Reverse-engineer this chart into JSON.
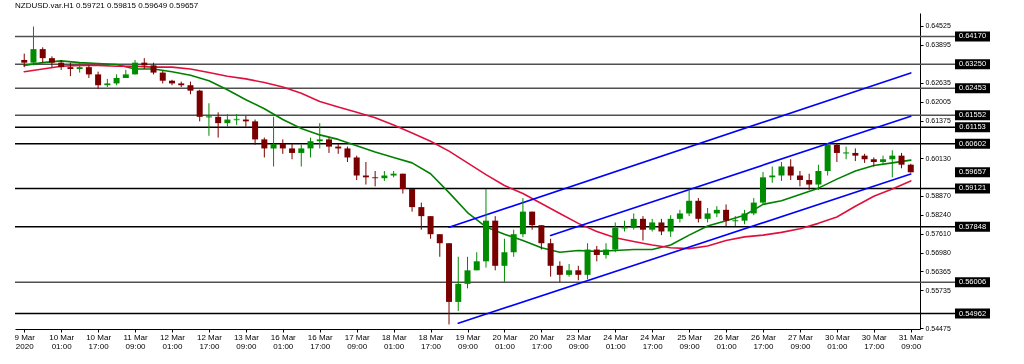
{
  "chart_data": {
    "type": "candlestick",
    "title": "NZDUSD.var.H1  0.59721 0.59815 0.59649 0.59657",
    "categories": [
      "9 Mar 2020",
      null,
      null,
      null,
      "10 Mar 01:00",
      null,
      null,
      null,
      "10 Mar 17:00",
      null,
      null,
      null,
      "11 Mar 09:00",
      null,
      null,
      null,
      "12 Mar 01:00",
      null,
      null,
      null,
      "12 Mar 17:00",
      null,
      null,
      null,
      "13 Mar 09:00",
      null,
      null,
      null,
      "16 Mar 01:00",
      null,
      null,
      null,
      "16 Mar 17:00",
      null,
      null,
      null,
      "17 Mar 09:00",
      null,
      null,
      null,
      "18 Mar 01:00",
      null,
      null,
      null,
      "18 Mar 17:00",
      null,
      null,
      null,
      "19 Mar 09:00",
      null,
      null,
      null,
      "20 Mar 01:00",
      null,
      null,
      null,
      "20 Mar 17:00",
      null,
      null,
      null,
      "23 Mar 09:00",
      null,
      null,
      null,
      "24 Mar 01:00",
      null,
      null,
      null,
      "24 Mar 17:00",
      null,
      null,
      null,
      "25 Mar 09:00",
      null,
      null,
      null,
      "26 Mar 01:00",
      null,
      null,
      null,
      "26 Mar 17:00",
      null,
      null,
      null,
      "27 Mar 09:00",
      null,
      null,
      null,
      "30 Mar 01:00",
      null,
      null,
      null,
      "30 Mar 17:00",
      null,
      null,
      null,
      "31 Mar 09:00"
    ],
    "ohlc": [
      [
        0.6339,
        0.636,
        0.6315,
        0.633
      ],
      [
        0.633,
        0.645,
        0.6321,
        0.6375
      ],
      [
        0.6375,
        0.6381,
        0.633,
        0.6345
      ],
      [
        0.6345,
        0.6351,
        0.6315,
        0.633
      ],
      [
        0.633,
        0.6339,
        0.6306,
        0.6315
      ],
      [
        0.6315,
        0.633,
        0.6285,
        0.6309
      ],
      [
        0.6309,
        0.633,
        0.6297,
        0.6315
      ],
      [
        0.6315,
        0.6321,
        0.6279,
        0.6291
      ],
      [
        0.6291,
        0.63,
        0.6243,
        0.6255
      ],
      [
        0.6255,
        0.6276,
        0.6249,
        0.6261
      ],
      [
        0.6261,
        0.6291,
        0.6255,
        0.6279
      ],
      [
        0.6279,
        0.6306,
        0.6279,
        0.6291
      ],
      [
        0.6291,
        0.6339,
        0.6291,
        0.633
      ],
      [
        0.633,
        0.6345,
        0.6309,
        0.6321
      ],
      [
        0.6321,
        0.633,
        0.6291,
        0.6297
      ],
      [
        0.6297,
        0.6303,
        0.6261,
        0.627
      ],
      [
        0.627,
        0.6273,
        0.6255,
        0.6261
      ],
      [
        0.6261,
        0.6267,
        0.6249,
        0.6255
      ],
      [
        0.6255,
        0.6267,
        0.6225,
        0.6237
      ],
      [
        0.6237,
        0.624,
        0.6135,
        0.615
      ],
      [
        0.615,
        0.6195,
        0.6087,
        0.615
      ],
      [
        0.615,
        0.6165,
        0.6081,
        0.6129
      ],
      [
        0.6129,
        0.6159,
        0.6117,
        0.6141
      ],
      [
        0.6141,
        0.6159,
        0.6123,
        0.6141
      ],
      [
        0.6141,
        0.6153,
        0.6117,
        0.6135
      ],
      [
        0.6135,
        0.6141,
        0.6057,
        0.6075
      ],
      [
        0.6075,
        0.6081,
        0.6015,
        0.6045
      ],
      [
        0.6045,
        0.615,
        0.5985,
        0.606
      ],
      [
        0.606,
        0.6075,
        0.6027,
        0.6045
      ],
      [
        0.6045,
        0.606,
        0.6009,
        0.603
      ],
      [
        0.603,
        0.6057,
        0.5985,
        0.6045
      ],
      [
        0.6045,
        0.6081,
        0.6015,
        0.6069
      ],
      [
        0.6069,
        0.6129,
        0.6045,
        0.6075
      ],
      [
        0.6075,
        0.6081,
        0.603,
        0.6051
      ],
      [
        0.6051,
        0.606,
        0.6027,
        0.6045
      ],
      [
        0.6045,
        0.6051,
        0.6,
        0.6015
      ],
      [
        0.6015,
        0.6021,
        0.594,
        0.5955
      ],
      [
        0.5955,
        0.6,
        0.5925,
        0.5949
      ],
      [
        0.5949,
        0.597,
        0.5919,
        0.5946
      ],
      [
        0.5946,
        0.597,
        0.5937,
        0.5955
      ],
      [
        0.5955,
        0.597,
        0.5949,
        0.5961
      ],
      [
        0.5961,
        0.5961,
        0.5895,
        0.591
      ],
      [
        0.591,
        0.591,
        0.5835,
        0.585
      ],
      [
        0.585,
        0.5865,
        0.5775,
        0.582
      ],
      [
        0.582,
        0.582,
        0.5745,
        0.576
      ],
      [
        0.576,
        0.576,
        0.5685,
        0.573
      ],
      [
        0.573,
        0.573,
        0.546,
        0.5535
      ],
      [
        0.5535,
        0.5685,
        0.5505,
        0.5595
      ],
      [
        0.5595,
        0.5685,
        0.558,
        0.564
      ],
      [
        0.564,
        0.57,
        0.564,
        0.567
      ],
      [
        0.567,
        0.591,
        0.5649,
        0.5805
      ],
      [
        0.5805,
        0.582,
        0.564,
        0.5655
      ],
      [
        0.5655,
        0.5745,
        0.5601,
        0.57
      ],
      [
        0.57,
        0.5775,
        0.5685,
        0.576
      ],
      [
        0.576,
        0.588,
        0.575,
        0.5835
      ],
      [
        0.5835,
        0.5835,
        0.5775,
        0.579
      ],
      [
        0.579,
        0.579,
        0.5709,
        0.573
      ],
      [
        0.573,
        0.5745,
        0.5619,
        0.5655
      ],
      [
        0.5655,
        0.567,
        0.5601,
        0.5625
      ],
      [
        0.5625,
        0.5661,
        0.5619,
        0.564
      ],
      [
        0.564,
        0.5655,
        0.5607,
        0.5625
      ],
      [
        0.5625,
        0.573,
        0.561,
        0.5709
      ],
      [
        0.5709,
        0.5721,
        0.567,
        0.5691
      ],
      [
        0.5691,
        0.573,
        0.5679,
        0.5709
      ],
      [
        0.5709,
        0.5799,
        0.57,
        0.5781
      ],
      [
        0.5781,
        0.5805,
        0.5769,
        0.5781
      ],
      [
        0.5781,
        0.5829,
        0.5775,
        0.5811
      ],
      [
        0.5811,
        0.582,
        0.5739,
        0.5775
      ],
      [
        0.5775,
        0.5811,
        0.5769,
        0.5799
      ],
      [
        0.5799,
        0.5811,
        0.5757,
        0.5769
      ],
      [
        0.5769,
        0.5823,
        0.5751,
        0.5811
      ],
      [
        0.5811,
        0.5841,
        0.5799,
        0.5829
      ],
      [
        0.5829,
        0.591,
        0.582,
        0.5871
      ],
      [
        0.5871,
        0.588,
        0.5799,
        0.5811
      ],
      [
        0.5811,
        0.5847,
        0.5799,
        0.5829
      ],
      [
        0.5829,
        0.5853,
        0.5817,
        0.5841
      ],
      [
        0.5841,
        0.5859,
        0.5787,
        0.5805
      ],
      [
        0.5805,
        0.582,
        0.5787,
        0.5805
      ],
      [
        0.5805,
        0.5841,
        0.5793,
        0.5829
      ],
      [
        0.5829,
        0.588,
        0.5823,
        0.5865
      ],
      [
        0.5865,
        0.5967,
        0.5859,
        0.5949
      ],
      [
        0.5949,
        0.5985,
        0.5931,
        0.5955
      ],
      [
        0.5955,
        0.6,
        0.5937,
        0.5985
      ],
      [
        0.5985,
        0.6009,
        0.594,
        0.5955
      ],
      [
        0.5955,
        0.597,
        0.5919,
        0.594
      ],
      [
        0.594,
        0.5961,
        0.5907,
        0.5925
      ],
      [
        0.5925,
        0.5991,
        0.5907,
        0.597
      ],
      [
        0.597,
        0.6063,
        0.5955,
        0.6057
      ],
      [
        0.6057,
        0.6063,
        0.6,
        0.603
      ],
      [
        0.603,
        0.6051,
        0.6009,
        0.603
      ],
      [
        0.603,
        0.6045,
        0.6003,
        0.6021
      ],
      [
        0.6021,
        0.6027,
        0.5997,
        0.6009
      ],
      [
        0.6009,
        0.6015,
        0.5985,
        0.6
      ],
      [
        0.6,
        0.6021,
        0.5991,
        0.6009
      ],
      [
        0.6009,
        0.6039,
        0.5949,
        0.6021
      ],
      [
        0.6021,
        0.603,
        0.5979,
        0.5991
      ],
      [
        0.5991,
        0.5994,
        0.59649,
        0.59657
      ]
    ],
    "colors": [
      "#7a0000",
      "#008c00",
      "#7a0000",
      "#7a0000",
      "#7a0000",
      "#7a0000",
      "#008c00",
      "#7a0000",
      "#7a0000",
      "#008c00",
      "#008c00",
      "#008c00",
      "#008c00",
      "#7a0000",
      "#7a0000",
      "#7a0000",
      "#7a0000",
      "#7a0000",
      "#7a0000",
      "#7a0000",
      "#008c00",
      "#7a0000",
      "#008c00",
      "#008c00",
      "#7a0000",
      "#7a0000",
      "#7a0000",
      "#008c00",
      "#7a0000",
      "#7a0000",
      "#008c00",
      "#008c00",
      "#008c00",
      "#7a0000",
      "#7a0000",
      "#7a0000",
      "#7a0000",
      "#7a0000",
      "#7a0000",
      "#008c00",
      "#008c00",
      "#7a0000",
      "#7a0000",
      "#7a0000",
      "#7a0000",
      "#7a0000",
      "#7a0000",
      "#008c00",
      "#008c00",
      "#008c00",
      "#008c00",
      "#7a0000",
      "#008c00",
      "#008c00",
      "#008c00",
      "#7a0000",
      "#7a0000",
      "#7a0000",
      "#7a0000",
      "#008c00",
      "#7a0000",
      "#008c00",
      "#7a0000",
      "#008c00",
      "#008c00",
      "#008c00",
      "#008c00",
      "#7a0000",
      "#008c00",
      "#7a0000",
      "#008c00",
      "#008c00",
      "#008c00",
      "#7a0000",
      "#008c00",
      "#008c00",
      "#7a0000",
      "#008c00",
      "#008c00",
      "#008c00",
      "#008c00",
      "#008c00",
      "#008c00",
      "#7a0000",
      "#7a0000",
      "#7a0000",
      "#008c00",
      "#008c00",
      "#7a0000",
      "#008c00",
      "#7a0000",
      "#7a0000",
      "#7a0000",
      "#008c00",
      "#008c00",
      "#7a0000",
      "#7a0000"
    ],
    "series": [
      {
        "type": "line",
        "color": "#008000",
        "values": [
          0.6321,
          null,
          0.633,
          null,
          0.6336,
          null,
          0.633,
          null,
          0.6327,
          null,
          0.6324,
          null,
          0.6309,
          null,
          0.6309,
          null,
          0.63,
          null,
          0.6288,
          null,
          0.627,
          null,
          0.624,
          null,
          0.6207,
          null,
          0.6177,
          null,
          0.6141,
          null,
          0.6111,
          null,
          0.609,
          null,
          0.6075,
          null,
          0.6054,
          null,
          0.6033,
          null,
          0.6015,
          null,
          0.5997,
          null,
          0.5961,
          null,
          0.5898,
          null,
          0.5832,
          null,
          0.5784,
          null,
          0.576,
          null,
          0.5739,
          null,
          0.5715,
          null,
          0.57,
          null,
          0.5706,
          null,
          0.5703,
          null,
          0.5706,
          null,
          0.5709,
          null,
          0.5709,
          null,
          0.5724,
          null,
          0.5757,
          null,
          0.5787,
          null,
          0.5805,
          null,
          0.5823,
          null,
          0.5859,
          null,
          0.5871,
          null,
          0.5892,
          null,
          0.5913,
          null,
          0.5943,
          null,
          0.597,
          null,
          0.5988,
          null,
          0.5997,
          null,
          0.6006
        ]
      },
      {
        "type": "line",
        "color": "#e0103c",
        "values": [
          0.63,
          null,
          0.6309,
          null,
          0.6318,
          null,
          0.6321,
          null,
          0.6321,
          null,
          0.6318,
          null,
          0.6318,
          null,
          0.6315,
          null,
          0.6315,
          null,
          0.6309,
          null,
          0.6297,
          null,
          0.6285,
          null,
          0.6276,
          null,
          0.6264,
          null,
          0.6249,
          null,
          0.6228,
          null,
          0.6201,
          null,
          0.6183,
          null,
          0.6165,
          null,
          0.6147,
          null,
          0.6123,
          null,
          0.6096,
          null,
          0.6069,
          null,
          0.6036,
          null,
          0.5997,
          null,
          0.5958,
          null,
          0.5922,
          null,
          0.5895,
          null,
          0.5862,
          null,
          0.5829,
          null,
          0.5796,
          null,
          0.5769,
          null,
          0.5748,
          null,
          0.5736,
          null,
          0.5724,
          null,
          0.5715,
          null,
          0.5712,
          null,
          0.5721,
          null,
          0.5739,
          null,
          0.5751,
          null,
          0.5757,
          null,
          0.5766,
          null,
          0.5778,
          null,
          0.5796,
          null,
          0.5817,
          null,
          0.5853,
          null,
          0.5886,
          null,
          0.591,
          null,
          0.5937
        ]
      },
      {
        "type": "line",
        "color": "#0000ff",
        "values": [
          null,
          null,
          null,
          null,
          null,
          null,
          null,
          null,
          null,
          null,
          null,
          null,
          null,
          null,
          null,
          null,
          null,
          null,
          null,
          null,
          null,
          null,
          null,
          null,
          null,
          null,
          null,
          null,
          null,
          null,
          null,
          null,
          null,
          null,
          null,
          null,
          null,
          null,
          null,
          null,
          null,
          null,
          null,
          null,
          null,
          null,
          0.5783,
          null,
          null,
          null,
          null,
          null,
          null,
          null,
          null,
          null,
          null,
          null,
          null,
          null,
          null,
          null,
          null,
          null,
          null,
          null,
          null,
          null,
          null,
          null,
          null,
          null,
          null,
          null,
          null,
          null,
          null,
          null,
          null,
          null,
          null,
          null,
          null,
          null,
          null,
          null,
          null,
          null,
          null,
          null,
          null,
          null,
          null,
          null,
          null,
          null,
          0.6296
        ]
      },
      {
        "type": "line",
        "color": "#0000ff",
        "values": [
          null,
          null,
          null,
          null,
          null,
          null,
          null,
          null,
          null,
          null,
          null,
          null,
          null,
          null,
          null,
          null,
          null,
          null,
          null,
          null,
          null,
          null,
          null,
          null,
          null,
          null,
          null,
          null,
          null,
          null,
          null,
          null,
          null,
          null,
          null,
          null,
          null,
          null,
          null,
          null,
          null,
          null,
          null,
          null,
          null,
          null,
          null,
          null,
          null,
          null,
          null,
          null,
          null,
          null,
          null,
          null,
          null,
          0.5756,
          null,
          null,
          null,
          null,
          null,
          null,
          null,
          null,
          null,
          null,
          null,
          null,
          null,
          null,
          null,
          null,
          null,
          null,
          null,
          null,
          null,
          null,
          null,
          null,
          null,
          null,
          null,
          null,
          null,
          null,
          null,
          null,
          null,
          null,
          null,
          null,
          null,
          null,
          0.6152
        ]
      },
      {
        "type": "line",
        "color": "#0000ff",
        "values": [
          null,
          null,
          null,
          null,
          null,
          null,
          null,
          null,
          null,
          null,
          null,
          null,
          null,
          null,
          null,
          null,
          null,
          null,
          null,
          null,
          null,
          null,
          null,
          null,
          null,
          null,
          null,
          null,
          null,
          null,
          null,
          null,
          null,
          null,
          null,
          null,
          null,
          null,
          null,
          null,
          null,
          null,
          null,
          null,
          null,
          null,
          null,
          0.5464,
          null,
          null,
          null,
          null,
          null,
          null,
          null,
          null,
          null,
          null,
          null,
          null,
          null,
          null,
          null,
          null,
          null,
          null,
          null,
          null,
          null,
          null,
          null,
          null,
          null,
          null,
          null,
          null,
          null,
          null,
          null,
          null,
          null,
          null,
          null,
          null,
          null,
          null,
          null,
          null,
          null,
          null,
          null,
          null,
          null,
          null,
          null,
          null,
          0.596
        ]
      }
    ],
    "ylim": [
      0.5445,
      0.6495
    ],
    "yticks": [
      0.64525,
      0.63895,
      0.62635,
      0.62005,
      0.61375,
      {
        "value": 0.6013,
        "label": "0.60130"
      },
      {
        "value": 0.5887,
        "label": "0.58870"
      },
      {
        "value": 0.5824,
        "label": "0.58240"
      },
      {
        "value": 0.5761,
        "label": "0.57610"
      },
      {
        "value": 0.5698,
        "label": "0.56980"
      },
      0.56365,
      0.55735,
      0.54475
    ],
    "ref_lines": [
      {
        "axis": "y",
        "value": 0.6417,
        "label": "0.64170",
        "color": "#505050"
      },
      {
        "axis": "y",
        "value": 0.6325,
        "label": "0.63250",
        "color": "#505050"
      },
      {
        "axis": "y",
        "value": 0.62453,
        "label": "0.62453",
        "color": "#505050"
      },
      {
        "axis": "y",
        "value": 0.61552,
        "label": "0.61552",
        "color": "#505050"
      },
      {
        "axis": "y",
        "value": 0.61153,
        "label": "0.61153",
        "color": "#000000"
      },
      {
        "axis": "y",
        "value": 0.60602,
        "label": "0.60602",
        "color": "#000000"
      },
      {
        "axis": "y",
        "value": 0.59121,
        "label": "0.59121",
        "color": "#000000"
      },
      {
        "axis": "y",
        "value": 0.57848,
        "label": "0.57848",
        "color": "#000000"
      },
      {
        "axis": "y",
        "value": 0.56006,
        "label": "0.56006",
        "color": "#505050"
      },
      {
        "axis": "y",
        "value": 0.54962,
        "label": "0.54962",
        "color": "#000000"
      }
    ],
    "annotations": [
      "0.59657"
    ]
  }
}
